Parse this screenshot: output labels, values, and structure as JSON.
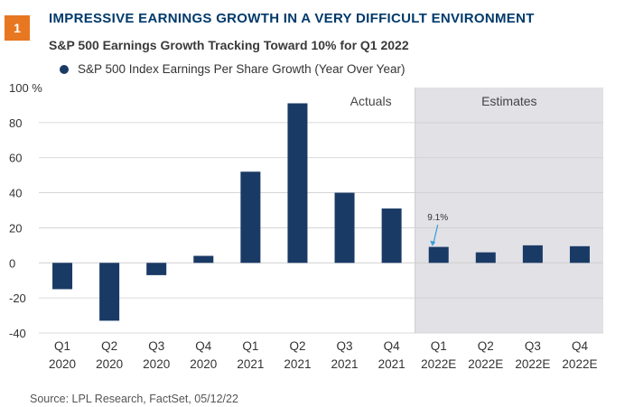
{
  "figure": {
    "badge": "1",
    "title": "IMPRESSIVE EARNINGS GROWTH IN A VERY DIFFICULT ENVIRONMENT",
    "subtitle": "S&P 500 Earnings Growth Tracking Toward 10% for Q1 2022",
    "source": "Source: LPL Research, FactSet, 05/12/22"
  },
  "colors": {
    "bar": "#1a3a66",
    "estimates_shade": "#e1e1e6",
    "gridline": "#cfcfcf",
    "title": "#003a6b",
    "badge": "#e87722"
  },
  "chart_data": {
    "type": "bar",
    "title": "S&P 500 Earnings Growth Tracking Toward 10% for Q1 2022",
    "legend": [
      "S&P 500 Index Earnings Per Share Growth (Year Over Year)"
    ],
    "categories": [
      [
        "Q1",
        "2020"
      ],
      [
        "Q2",
        "2020"
      ],
      [
        "Q3",
        "2020"
      ],
      [
        "Q4",
        "2020"
      ],
      [
        "Q1",
        "2021"
      ],
      [
        "Q2",
        "2021"
      ],
      [
        "Q3",
        "2021"
      ],
      [
        "Q4",
        "2021"
      ],
      [
        "Q1",
        "2022E"
      ],
      [
        "Q2",
        "2022E"
      ],
      [
        "Q3",
        "2022E"
      ],
      [
        "Q4",
        "2022E"
      ]
    ],
    "series": [
      {
        "name": "S&P 500 Index Earnings Per Share Growth (Year Over Year)",
        "values": [
          -15,
          -33,
          -7,
          4,
          52,
          91,
          40,
          31,
          9.1,
          6,
          10,
          9.5
        ]
      }
    ],
    "ylim": [
      -40,
      100
    ],
    "yticks": [
      -40,
      -20,
      0,
      20,
      40,
      60,
      80,
      100
    ],
    "ytick_labels": [
      "-40",
      "-20",
      "0",
      "20",
      "40",
      "60",
      "80",
      "100 %"
    ],
    "regions": [
      {
        "label": "Actuals",
        "from_index": 0,
        "to_index": 7
      },
      {
        "label": "Estimates",
        "from_index": 8,
        "to_index": 11
      }
    ],
    "annotation": {
      "text": "9.1%",
      "index": 8
    },
    "grid": true
  }
}
